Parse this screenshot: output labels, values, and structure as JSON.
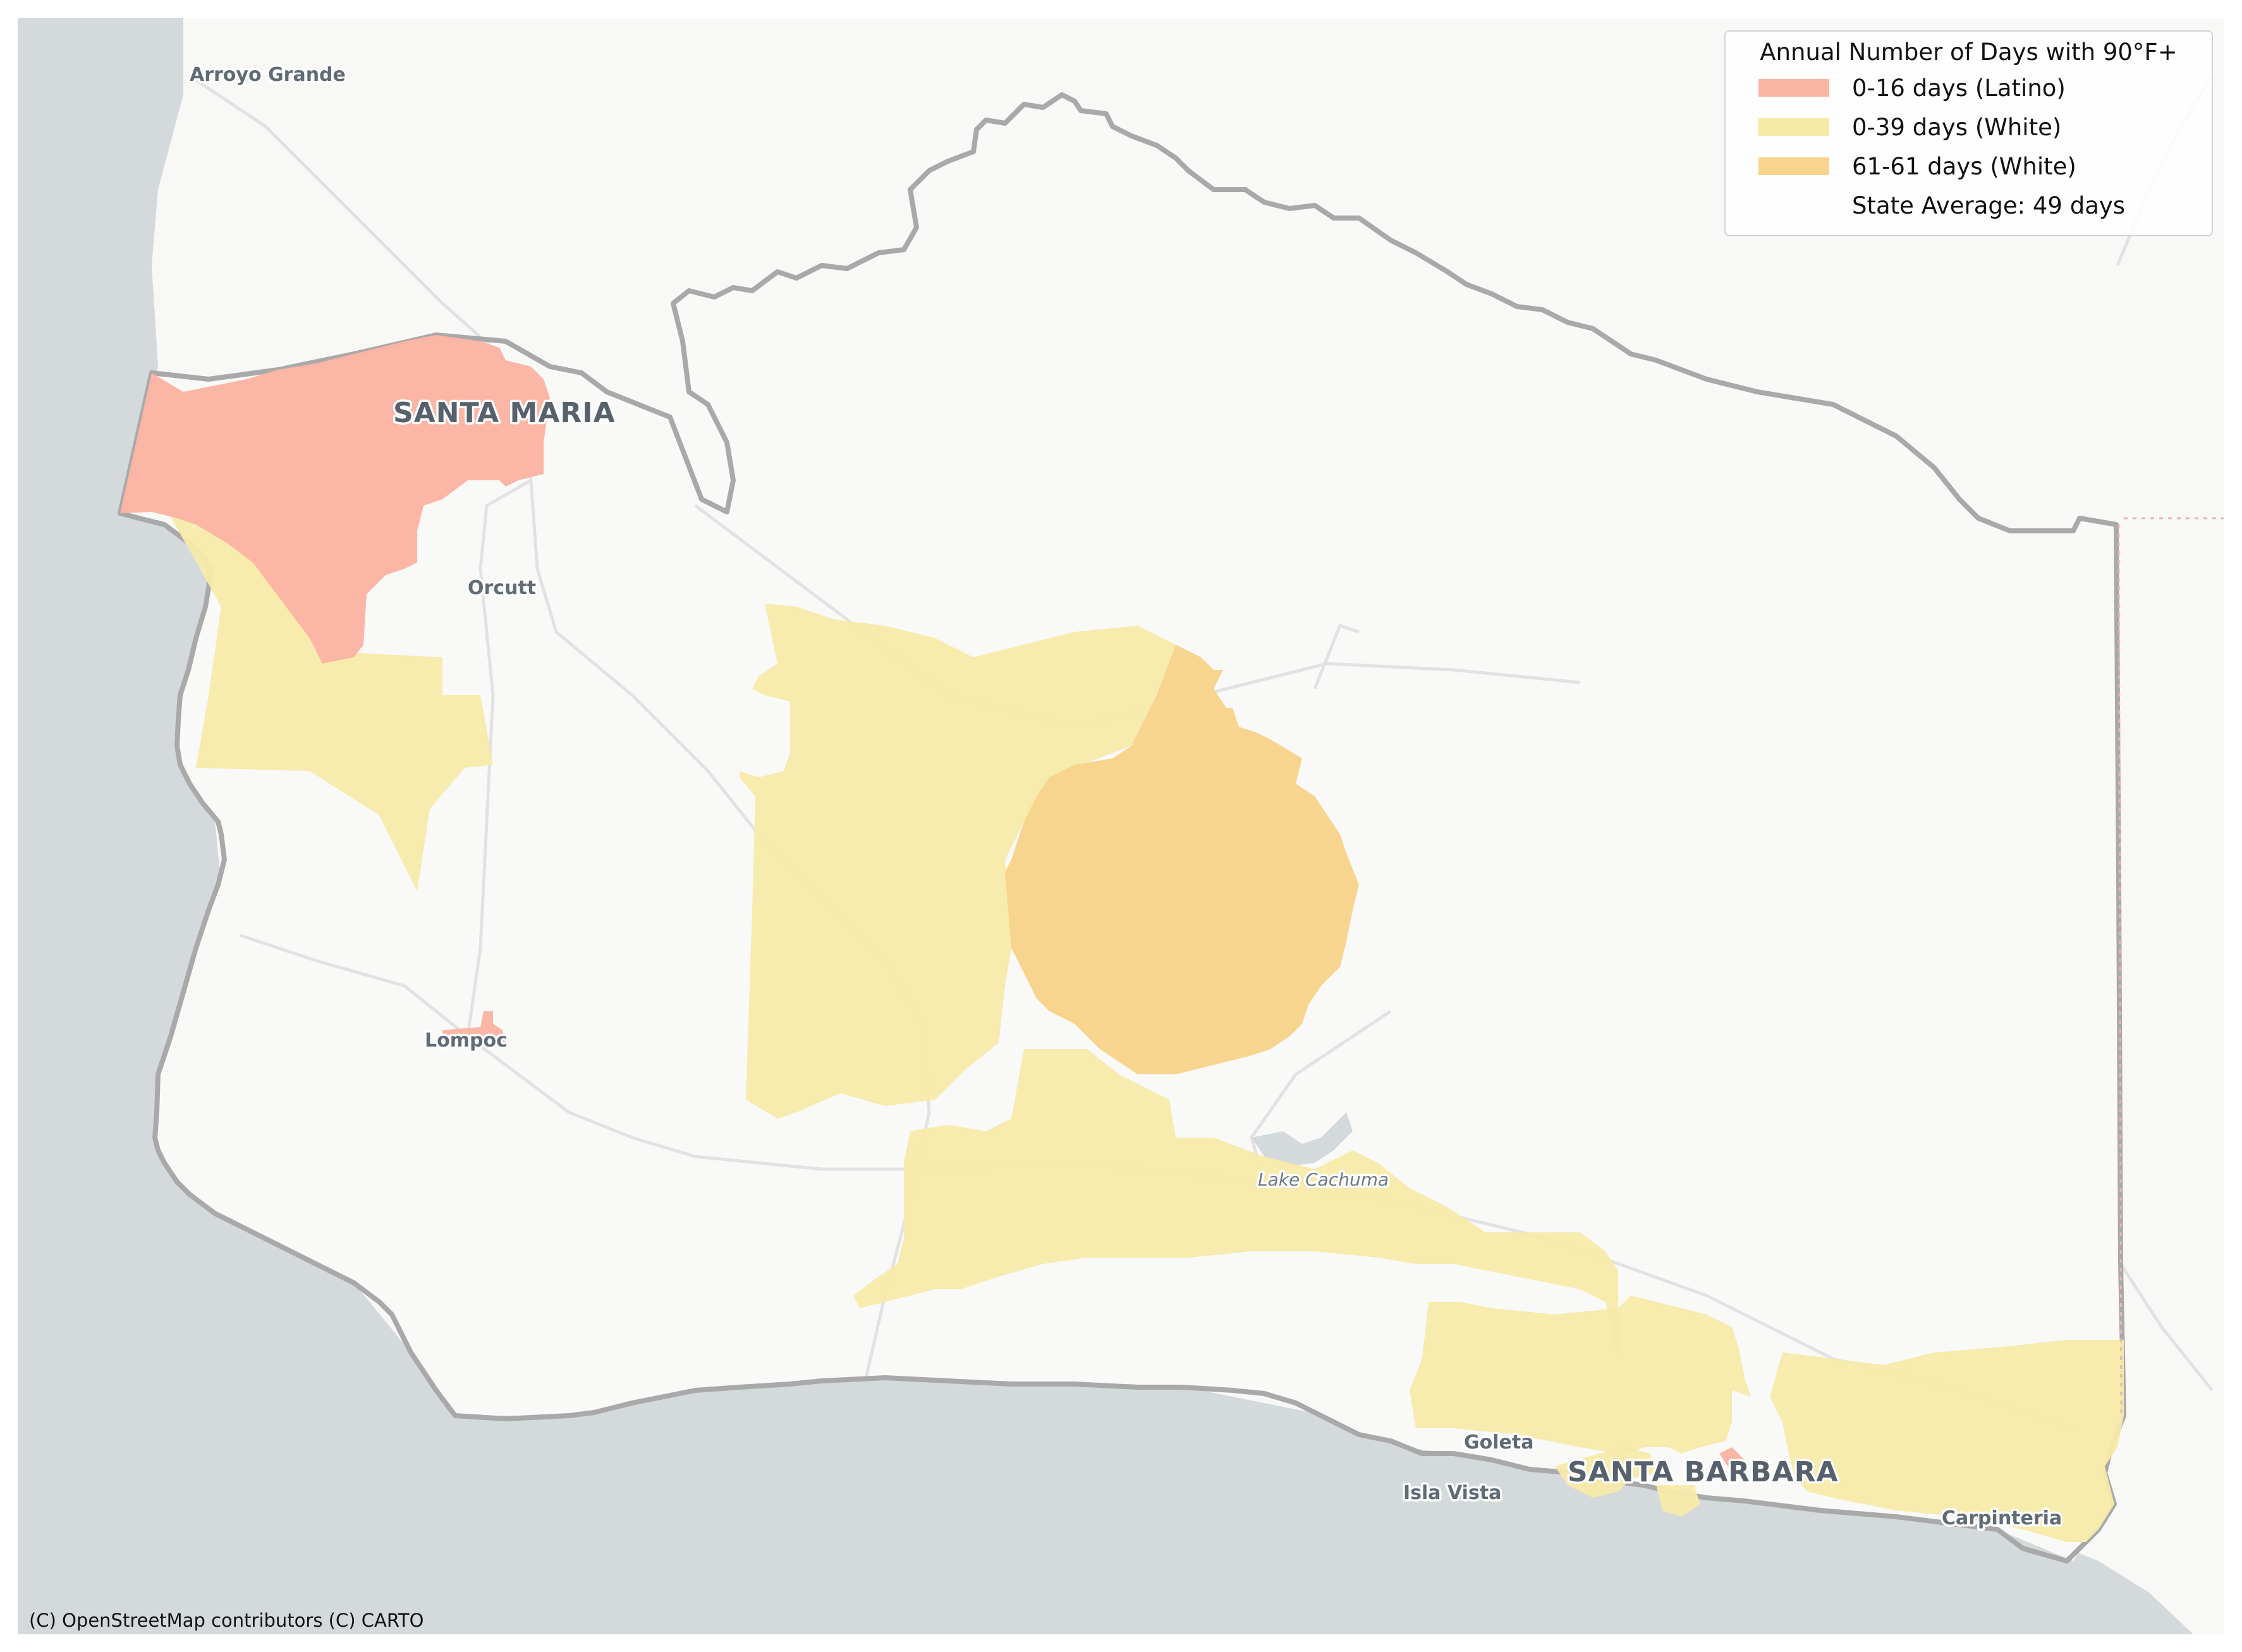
{
  "map": {
    "basemap": "CARTO Positron",
    "colors": {
      "ocean": "#d4d9dc",
      "land": "#f8f8f7",
      "county_border": "#a9a9a9",
      "roads": "#e3e3e3",
      "latino_0_16": "#fbb5a3",
      "white_0_39": "#f7eaa9",
      "white_61_61": "#f8d48c"
    },
    "places": [
      {
        "name": "Arroyo Grande",
        "kind": "town"
      },
      {
        "name": "SANTA MARIA",
        "kind": "city"
      },
      {
        "name": "Orcutt",
        "kind": "town"
      },
      {
        "name": "Lompoc",
        "kind": "town"
      },
      {
        "name": "Lake Cachuma",
        "kind": "water"
      },
      {
        "name": "Goleta",
        "kind": "town"
      },
      {
        "name": "SANTA BARBARA",
        "kind": "city"
      },
      {
        "name": "Isla Vista",
        "kind": "town"
      },
      {
        "name": "Carpinteria",
        "kind": "town"
      }
    ]
  },
  "legend": {
    "title": "Annual Number of Days with 90°F+",
    "position": "top-right",
    "items": [
      {
        "label": "0-16 days (Latino)",
        "color": "#fbb5a3"
      },
      {
        "label": "0-39 days (White)",
        "color": "#f7eaa9"
      },
      {
        "label": "61-61 days (White)",
        "color": "#f8d48c"
      },
      {
        "label": "State Average: 49 days",
        "color": ""
      }
    ]
  },
  "attribution": "(C) OpenStreetMap contributors (C) CARTO"
}
